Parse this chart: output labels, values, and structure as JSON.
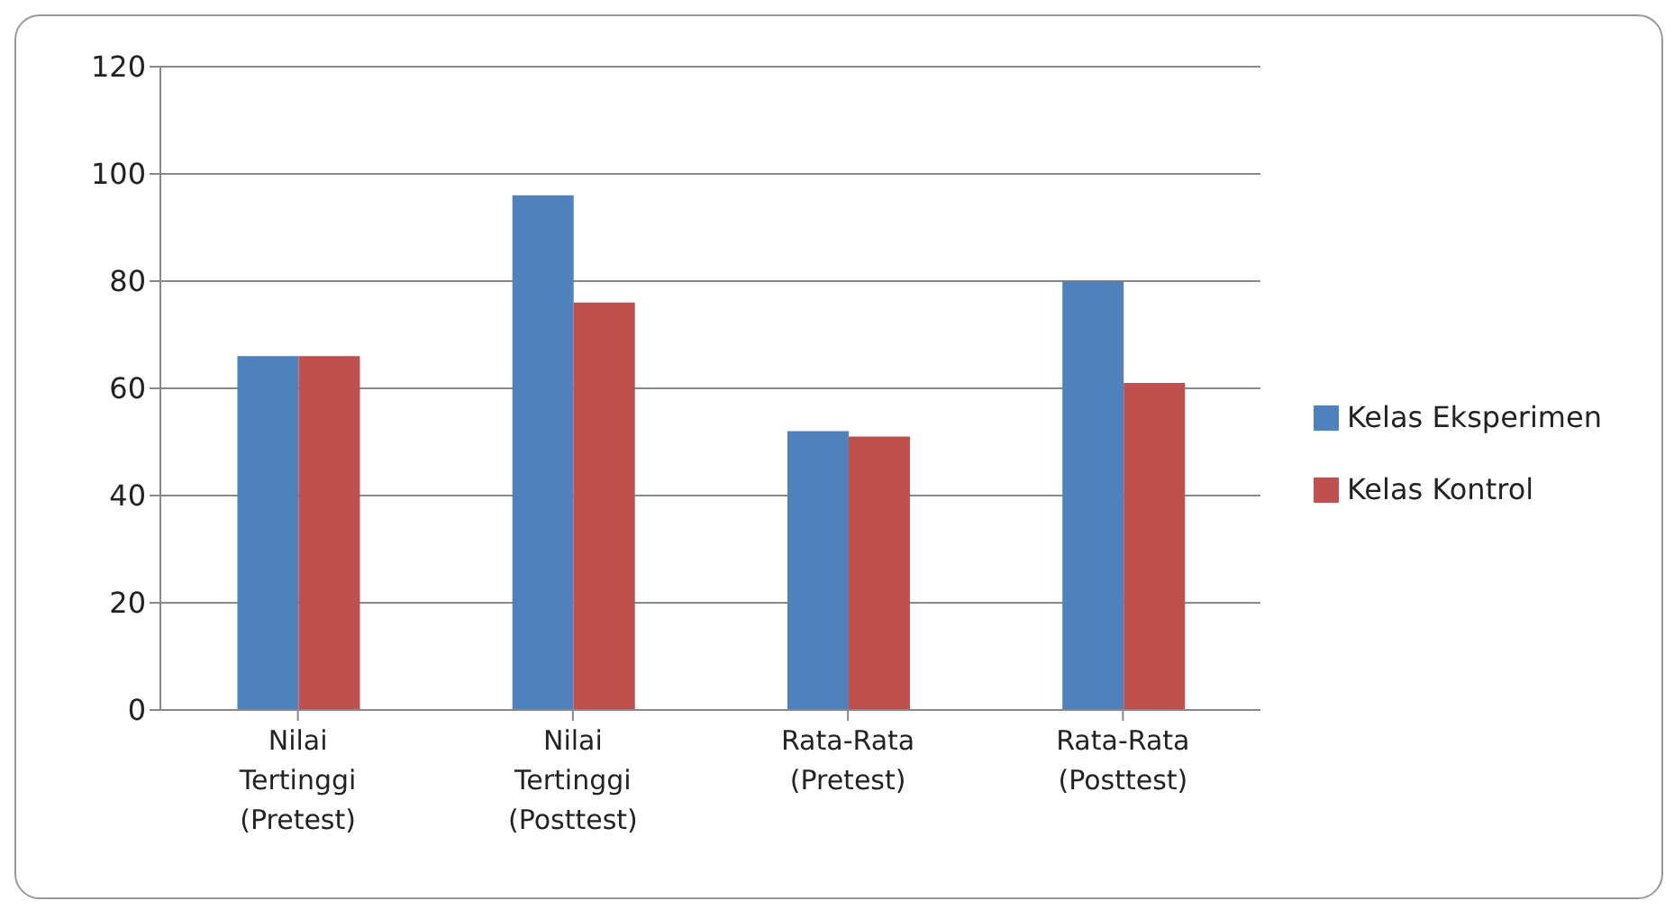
{
  "chart_data": {
    "type": "bar",
    "categories": [
      "Nilai Tertinggi (Pretest)",
      "Nilai Tertinggi (Posttest)",
      "Rata-Rata (Pretest)",
      "Rata-Rata (Posttest)"
    ],
    "series": [
      {
        "name": "Kelas Eksperimen",
        "color": "#4f81bd",
        "values": [
          66,
          96,
          52,
          80
        ]
      },
      {
        "name": "Kelas Kontrol",
        "color": "#c0504d",
        "values": [
          66,
          76,
          51,
          61
        ]
      }
    ],
    "ylim": [
      0,
      120
    ],
    "yticks": [
      0,
      20,
      40,
      60,
      80,
      100,
      120
    ],
    "grid": "y",
    "legend": "right"
  }
}
